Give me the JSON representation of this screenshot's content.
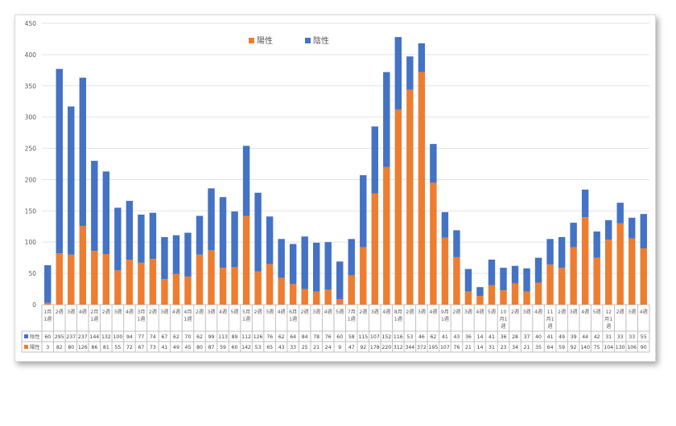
{
  "chart_data": {
    "type": "bar",
    "stacked": true,
    "ylim": [
      0,
      450
    ],
    "y_ticks": [
      0,
      50,
      100,
      150,
      200,
      250,
      300,
      350,
      400,
      450
    ],
    "grid": true,
    "legend_position": "top-center",
    "categories": [
      [
        "1月",
        "1週"
      ],
      [
        "2週"
      ],
      [
        "3週"
      ],
      [
        "4週"
      ],
      [
        "2月",
        "1週"
      ],
      [
        "2週"
      ],
      [
        "3週"
      ],
      [
        "4週"
      ],
      [
        "3月",
        "1週"
      ],
      [
        "2週"
      ],
      [
        "3週"
      ],
      [
        "4週"
      ],
      [
        "4月",
        "1週"
      ],
      [
        "2週"
      ],
      [
        "3週"
      ],
      [
        "4週"
      ],
      [
        "5週"
      ],
      [
        "5月",
        "1週"
      ],
      [
        "2週"
      ],
      [
        "3週"
      ],
      [
        "4週"
      ],
      [
        "6月",
        "1週"
      ],
      [
        "2週"
      ],
      [
        "3週"
      ],
      [
        "4週"
      ],
      [
        "5週"
      ],
      [
        "7月",
        "1週"
      ],
      [
        "2週"
      ],
      [
        "3週"
      ],
      [
        "4週"
      ],
      [
        "8月",
        "1週"
      ],
      [
        "2週"
      ],
      [
        "3週"
      ],
      [
        "4週"
      ],
      [
        "9月",
        "1週"
      ],
      [
        "2週"
      ],
      [
        "3週"
      ],
      [
        "4週"
      ],
      [
        "5週"
      ],
      [
        "10",
        "月1",
        "週"
      ],
      [
        "2週"
      ],
      [
        "3週"
      ],
      [
        "4週"
      ],
      [
        "11",
        "月1",
        "週"
      ],
      [
        "2週"
      ],
      [
        "3週"
      ],
      [
        "4週"
      ],
      [
        "5週"
      ],
      [
        "12",
        "月1",
        "週"
      ],
      [
        "2週"
      ],
      [
        "3週"
      ],
      [
        "4週"
      ]
    ],
    "series": [
      {
        "name": "陽性",
        "color": "#ed7d31",
        "values": [
          3,
          82,
          80,
          126,
          86,
          81,
          55,
          72,
          67,
          73,
          41,
          49,
          45,
          80,
          87,
          59,
          60,
          142,
          53,
          65,
          43,
          33,
          25,
          21,
          24,
          9,
          47,
          92,
          178,
          220,
          312,
          344,
          372,
          195,
          107,
          76,
          21,
          14,
          31,
          23,
          34,
          21,
          35,
          64,
          59,
          92,
          140,
          75,
          104,
          130,
          106,
          90
        ]
      },
      {
        "name": "陰性",
        "color": "#4472c4",
        "values": [
          60,
          295,
          237,
          237,
          144,
          132,
          100,
          94,
          77,
          74,
          67,
          62,
          70,
          62,
          99,
          113,
          89,
          112,
          126,
          76,
          62,
          64,
          84,
          78,
          76,
          60,
          58,
          115,
          107,
          152,
          116,
          53,
          46,
          62,
          41,
          43,
          36,
          14,
          41,
          36,
          28,
          37,
          40,
          41,
          49,
          39,
          44,
          42,
          31,
          33,
          33,
          55
        ]
      }
    ]
  }
}
